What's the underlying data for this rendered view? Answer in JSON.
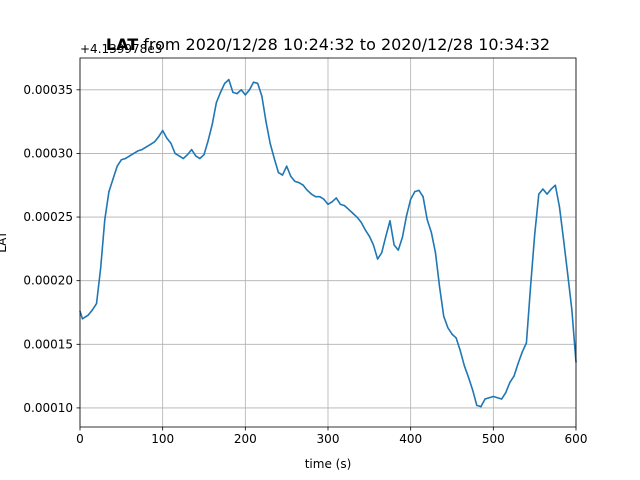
{
  "chart_data": {
    "type": "line",
    "title_bold": "LAT",
    "title_rest": " from 2020/12/28 10:24:32 to 2020/12/28 10:34:32",
    "offset_label": "+4.139978e3",
    "xlabel": "time (s)",
    "ylabel": "LAT",
    "xlim": [
      0,
      600
    ],
    "ylim": [
      8.5e-05,
      0.000375
    ],
    "xticks": [
      0,
      100,
      200,
      300,
      400,
      500,
      600
    ],
    "xtick_labels": [
      "0",
      "100",
      "200",
      "300",
      "400",
      "500",
      "600"
    ],
    "yticks": [
      0.0001,
      0.00015,
      0.0002,
      0.00025,
      0.0003,
      0.00035
    ],
    "ytick_labels": [
      "0.00010",
      "0.00015",
      "0.00020",
      "0.00025",
      "0.00030",
      "0.00035"
    ],
    "grid": true,
    "series": [
      {
        "color": "#1f77b4",
        "x": [
          0,
          3,
          10,
          15,
          20,
          25,
          30,
          35,
          40,
          45,
          50,
          55,
          60,
          65,
          70,
          75,
          80,
          85,
          90,
          95,
          100,
          105,
          110,
          115,
          120,
          125,
          130,
          135,
          140,
          145,
          150,
          155,
          160,
          165,
          170,
          175,
          180,
          185,
          190,
          195,
          200,
          205,
          210,
          215,
          220,
          225,
          230,
          235,
          240,
          245,
          250,
          255,
          260,
          265,
          270,
          275,
          280,
          285,
          290,
          295,
          300,
          305,
          310,
          315,
          320,
          325,
          330,
          335,
          340,
          345,
          350,
          355,
          360,
          365,
          370,
          375,
          380,
          385,
          390,
          395,
          400,
          405,
          410,
          415,
          420,
          425,
          430,
          435,
          440,
          445,
          450,
          455,
          460,
          465,
          470,
          475,
          480,
          485,
          490,
          495,
          500,
          505,
          510,
          515,
          520,
          525,
          530,
          535,
          540,
          545,
          550,
          555,
          560,
          565,
          570,
          575,
          580,
          585,
          590,
          595,
          600
        ],
        "y": [
          0.000176,
          0.00017,
          0.000173,
          0.000177,
          0.000182,
          0.00021,
          0.000248,
          0.00027,
          0.00028,
          0.00029,
          0.000295,
          0.000296,
          0.000298,
          0.0003,
          0.000302,
          0.000303,
          0.000305,
          0.000307,
          0.000309,
          0.000313,
          0.000318,
          0.000312,
          0.000308,
          0.0003,
          0.000298,
          0.000296,
          0.000299,
          0.000303,
          0.000298,
          0.000296,
          0.000299,
          0.00031,
          0.000323,
          0.00034,
          0.000348,
          0.000355,
          0.000358,
          0.000348,
          0.000347,
          0.00035,
          0.000346,
          0.00035,
          0.000356,
          0.000355,
          0.000345,
          0.000325,
          0.000308,
          0.000296,
          0.000285,
          0.000283,
          0.00029,
          0.000282,
          0.000278,
          0.000277,
          0.000275,
          0.000271,
          0.000268,
          0.000266,
          0.000266,
          0.000264,
          0.00026,
          0.000262,
          0.000265,
          0.00026,
          0.000259,
          0.000256,
          0.000253,
          0.00025,
          0.000246,
          0.00024,
          0.000235,
          0.000228,
          0.000217,
          0.000222,
          0.000235,
          0.000247,
          0.000228,
          0.000224,
          0.000234,
          0.000251,
          0.000264,
          0.00027,
          0.000271,
          0.000266,
          0.000248,
          0.000238,
          0.000222,
          0.000195,
          0.000172,
          0.000163,
          0.000158,
          0.000155,
          0.000145,
          0.000133,
          0.000124,
          0.000114,
          0.000102,
          0.000101,
          0.000107,
          0.000108,
          0.000109,
          0.000108,
          0.000107,
          0.000112,
          0.00012,
          0.000125,
          0.000135,
          0.000144,
          0.000151,
          0.000195,
          0.000236,
          0.000268,
          0.000272,
          0.000268,
          0.000272,
          0.000275,
          0.000258,
          0.000232,
          0.000205,
          0.000177,
          0.000136
        ]
      }
    ]
  }
}
